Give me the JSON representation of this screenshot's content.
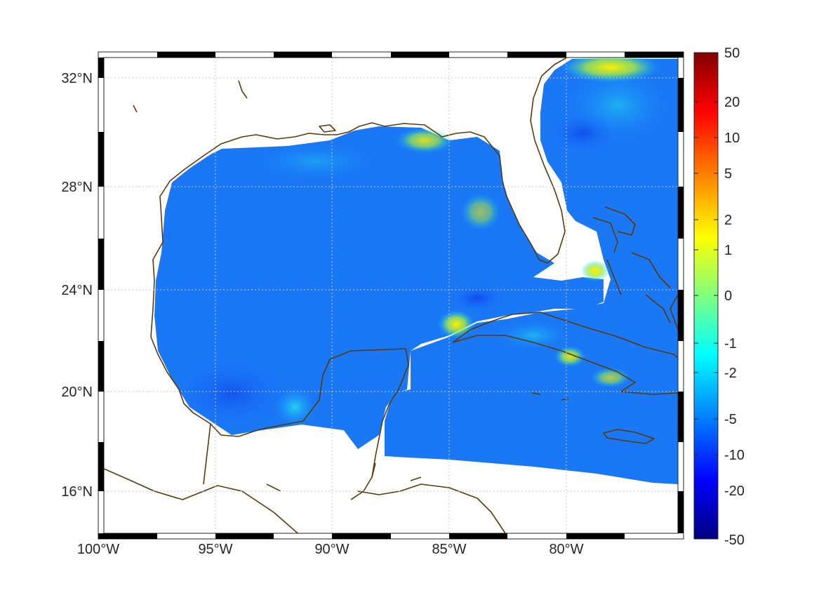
{
  "map": {
    "lon_labels": [
      "100°W",
      "95°W",
      "90°W",
      "85°W",
      "80°W"
    ],
    "lat_labels": [
      "32°N",
      "28°N",
      "24°N",
      "20°N",
      "16°N"
    ],
    "gridlines": true,
    "coastline_color": "#5a3a0a",
    "land_color": "#ffffff",
    "field_colormap": "jet"
  },
  "colorbar": {
    "tick_labels": [
      "50",
      "20",
      "10",
      "5",
      "2",
      "1",
      "0",
      "-1",
      "-2",
      "-5",
      "-10",
      "-20",
      "-50"
    ],
    "colors_top_to_bottom": [
      "#800000",
      "#ff0000",
      "#ff8000",
      "#ffff00",
      "#00ffff",
      "#0080ff",
      "#0000ff",
      "#000080"
    ]
  }
}
